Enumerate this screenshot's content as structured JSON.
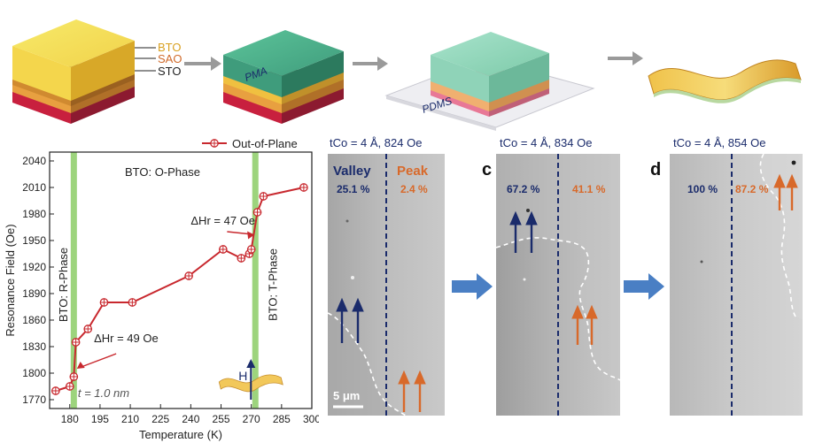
{
  "schematic": {
    "layer_labels": [
      "BTO",
      "SAO",
      "STO"
    ],
    "pma_label": "PMA",
    "pdms_label": "PDMS"
  },
  "chart_data": {
    "type": "line",
    "title": "",
    "xlabel": "Temperature (K)",
    "ylabel": "Resonance Field (Oe)",
    "xlim": [
      170,
      300
    ],
    "ylim": [
      1760,
      2050
    ],
    "x_ticks": [
      180,
      195,
      210,
      225,
      240,
      255,
      270,
      285,
      300
    ],
    "y_ticks": [
      1770,
      1800,
      1830,
      1860,
      1890,
      1920,
      1950,
      1980,
      2010,
      2040
    ],
    "grid": false,
    "legend_position": "top-right",
    "series": [
      {
        "name": "Out-of-Plane",
        "color": "#c8282e",
        "x": [
          173,
          180,
          182,
          183,
          189,
          197,
          211,
          239,
          256,
          265,
          269,
          270,
          273,
          276,
          296
        ],
        "y": [
          1780,
          1785,
          1796,
          1835,
          1850,
          1880,
          1880,
          1910,
          1940,
          1930,
          1935,
          1940,
          1982,
          2000,
          2010
        ]
      }
    ],
    "highlight_bands": [
      {
        "x": 182,
        "color": "#8ccd66"
      },
      {
        "x": 272,
        "color": "#8ccd66"
      }
    ],
    "annotations": {
      "phase_o": "BTO: O-Phase",
      "phase_r": "BTO: R-Phase",
      "phase_t": "BTO: T-Phase",
      "delta_47": "ΔHr = 47 Oe",
      "delta_49": "ΔHr = 49 Oe",
      "thickness": "t = 1.0 nm",
      "inset_field": "H"
    }
  },
  "moke_panels": [
    {
      "title": "tCo = 4 Å, 824 Oe",
      "letter": "",
      "valley_label": "Valley",
      "peak_label": "Peak",
      "valley_pct": "25.1 %",
      "peak_pct": "2.4 %",
      "scale_bar": "5 μm"
    },
    {
      "title": "tCo = 4 Å, 834 Oe",
      "letter": "c",
      "valley_pct": "67.2 %",
      "peak_pct": "41.1 %"
    },
    {
      "title": "tCo = 4 Å, 854 Oe",
      "letter": "d",
      "valley_pct": "100 %",
      "peak_pct": "87.2 %"
    }
  ],
  "colors": {
    "navy": "#1a2b6b",
    "orange": "#d8692a",
    "arrow_blue": "#4a7fc4",
    "band_green": "#8ccd66",
    "series_red": "#c8282e"
  }
}
